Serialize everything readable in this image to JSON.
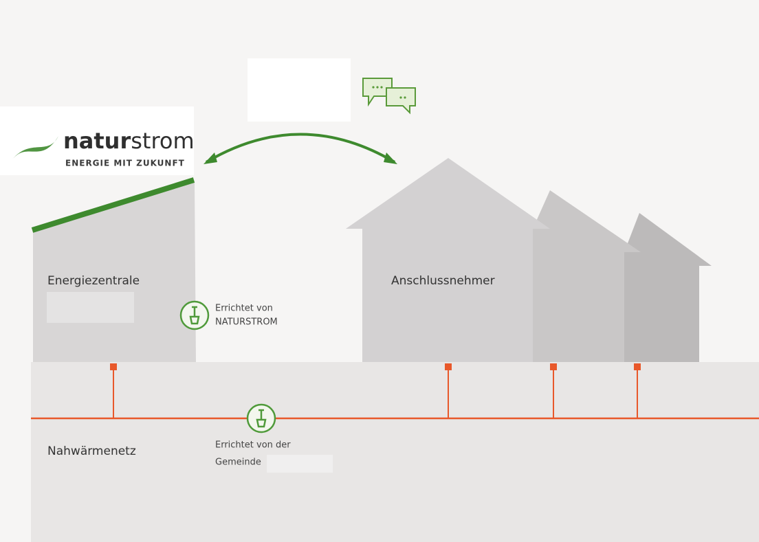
{
  "logo": {
    "name_bold": "natur",
    "name_light": "strom",
    "tagline": "ENERGIE MIT ZUKUNFT"
  },
  "nodes": [
    {
      "label": "Energiezentrale"
    },
    {
      "label": "Anschlussnehmer"
    },
    {
      "label": "Nahwärmenetz"
    }
  ],
  "notes": [
    {
      "lines": [
        "Errichtet von",
        "NATURSTROM"
      ]
    },
    {
      "lines": [
        "Errichtet von der",
        "Gemeinde"
      ]
    }
  ]
}
